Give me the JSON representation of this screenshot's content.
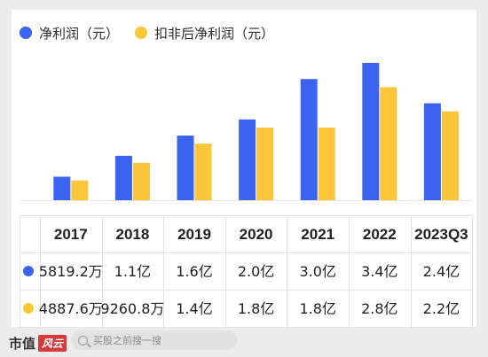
{
  "colors": {
    "series1": "#3a64f0",
    "series2": "#fcc63a"
  },
  "legend": [
    {
      "label": "净利润（元）",
      "color": "#3a64f0"
    },
    {
      "label": "扣非后净利润（元）",
      "color": "#fcc63a"
    }
  ],
  "chart_data": {
    "type": "bar",
    "categories": [
      "2017",
      "2018",
      "2019",
      "2020",
      "2021",
      "2022",
      "2023Q3"
    ],
    "series": [
      {
        "name": "净利润（元）",
        "values": [
          0.58192,
          1.1,
          1.6,
          2.0,
          3.0,
          3.4,
          2.4
        ],
        "unit": "亿"
      },
      {
        "name": "扣非后净利润（元）",
        "values": [
          0.48876,
          0.92608,
          1.4,
          1.8,
          1.8,
          2.8,
          2.2
        ],
        "unit": "亿"
      }
    ],
    "table": {
      "header": [
        "2017",
        "2018",
        "2019",
        "2020",
        "2021",
        "2022",
        "2023Q3"
      ],
      "rows": [
        {
          "series": "净利润（元）",
          "cells": [
            "5819.2万",
            "1.1亿",
            "1.6亿",
            "2.0亿",
            "3.0亿",
            "3.4亿",
            "2.4亿"
          ]
        },
        {
          "series": "扣非后净利润（元）",
          "cells": [
            "4887.6万",
            "9260.8万",
            "1.4亿",
            "1.8亿",
            "1.8亿",
            "2.8亿",
            "2.2亿"
          ]
        }
      ]
    },
    "ylim": [
      0,
      3.4
    ],
    "grid": false,
    "legend_position": "top-left"
  },
  "footer": {
    "logo_text": "市值",
    "logo_badge": "风云",
    "search_placeholder": "买股之前搜一搜"
  }
}
